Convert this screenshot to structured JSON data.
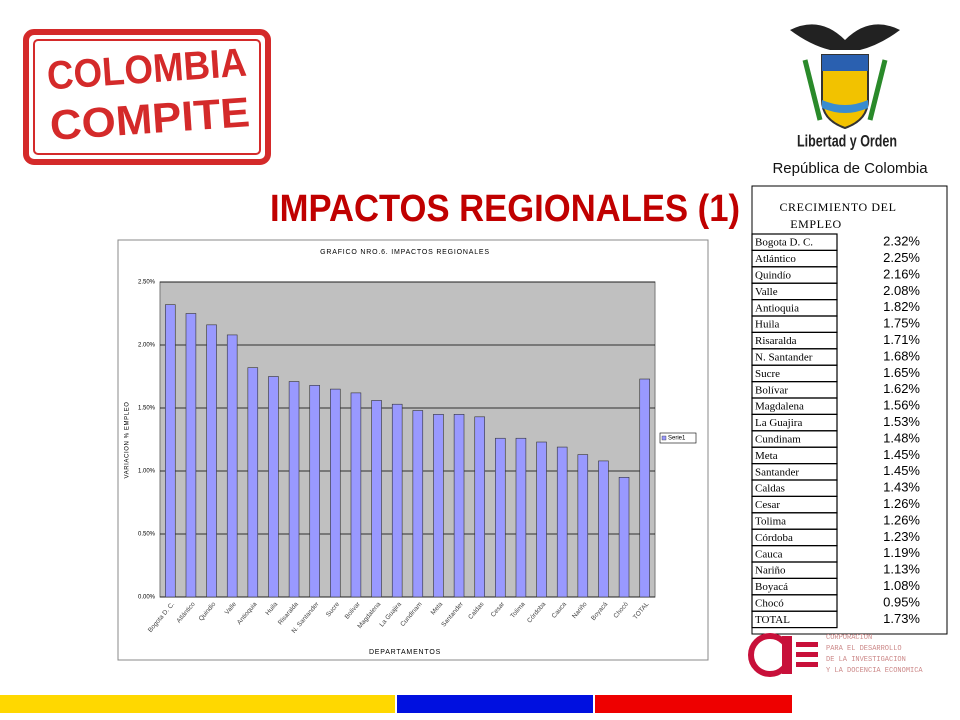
{
  "logo": {
    "lines": [
      "COLOMBIA",
      "COMPITE"
    ]
  },
  "emblem": {
    "motto": "Libertad y Orden",
    "country": "República de Colombia"
  },
  "heading": "IMPACTOS REGIONALES (1)",
  "chart_data": {
    "type": "bar",
    "title": "GRAFICO NRO.6. IMPACTOS REGIONALES",
    "xlabel": "DEPARTAMENTOS",
    "ylabel": "VARIACION % EMPLEO",
    "categories": [
      "Bogota D. C.",
      "Atlántico",
      "Quindio",
      "Valle",
      "Antioquia",
      "Huila",
      "Risaralda",
      "N. Santander",
      "Sucre",
      "Bolivar",
      "Magdalena",
      "La Guajira",
      "Cundinam",
      "Meta",
      "Santander",
      "Caldas",
      "Cesar",
      "Tolima",
      "Córdoba",
      "Cauca",
      "Nariño",
      "Boyacá",
      "Chocó",
      "TOTAL"
    ],
    "series": [
      {
        "name": "Serie1",
        "color": "#9999ff",
        "values": [
          2.32,
          2.25,
          2.16,
          2.08,
          1.82,
          1.75,
          1.71,
          1.68,
          1.65,
          1.62,
          1.56,
          1.53,
          1.48,
          1.45,
          1.45,
          1.43,
          1.26,
          1.26,
          1.23,
          1.19,
          1.13,
          1.08,
          0.95,
          1.73
        ]
      }
    ],
    "ylim": [
      0,
      2.5
    ],
    "yticks": [
      {
        "value": 0,
        "label": "0.00%"
      },
      {
        "value": 0.5,
        "label": "0.50%"
      },
      {
        "value": 1,
        "label": "1.00%"
      },
      {
        "value": 1.5,
        "label": "1.50%"
      },
      {
        "value": 2,
        "label": "2.00%"
      },
      {
        "value": 2.5,
        "label": "2.50%"
      }
    ],
    "grid": true,
    "legend": "right"
  },
  "table": {
    "header_lines": [
      "CRECIMIENTO DEL",
      "EMPLEO"
    ],
    "rows": [
      [
        "Bogota D. C.",
        "2.32%"
      ],
      [
        "Atlántico",
        "2.25%"
      ],
      [
        "Quindío",
        "2.16%"
      ],
      [
        "Valle",
        "2.08%"
      ],
      [
        "Antioquia",
        "1.82%"
      ],
      [
        "Huila",
        "1.75%"
      ],
      [
        "Risaralda",
        "1.71%"
      ],
      [
        "N. Santander",
        "1.68%"
      ],
      [
        "Sucre",
        "1.65%"
      ],
      [
        "Bolívar",
        "1.62%"
      ],
      [
        "Magdalena",
        "1.56%"
      ],
      [
        "La Guajira",
        "1.53%"
      ],
      [
        "Cundinam",
        "1.48%"
      ],
      [
        "Meta",
        "1.45%"
      ],
      [
        "Santander",
        "1.45%"
      ],
      [
        "Caldas",
        "1.43%"
      ],
      [
        "Cesar",
        "1.26%"
      ],
      [
        "Tolima",
        "1.26%"
      ],
      [
        "Córdoba",
        "1.23%"
      ],
      [
        "Cauca",
        "1.19%"
      ],
      [
        "Nariño",
        "1.13%"
      ],
      [
        "Boyacá",
        "1.08%"
      ],
      [
        "Chocó",
        "0.95%"
      ],
      [
        "TOTAL",
        "1.73%"
      ]
    ]
  },
  "footer_logo": {
    "lines": [
      "CORPORACION",
      "PARA EL DESARROLLO",
      "DE LA INVESTIGACION",
      "Y LA DOCENCIA ECONOMICA"
    ]
  }
}
